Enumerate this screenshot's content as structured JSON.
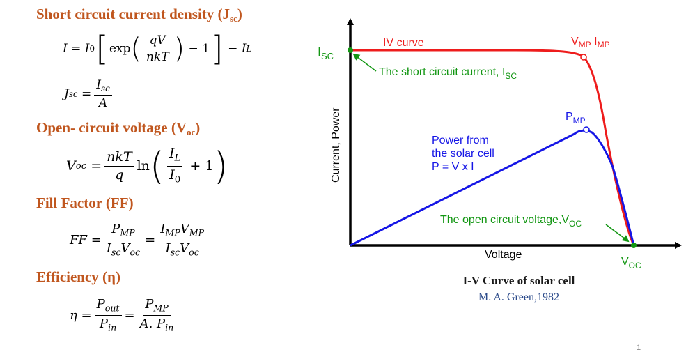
{
  "sections": [
    {
      "heading_main": "Short circuit current density (J",
      "heading_sub": "sc",
      "heading_end": ")"
    },
    {
      "heading_main": "Open- circuit voltage (V",
      "heading_sub": "oc",
      "heading_end": ")"
    },
    {
      "heading_main": "Fill Factor (FF)",
      "heading_sub": "",
      "heading_end": ""
    },
    {
      "heading_main": "Efficiency (η)",
      "heading_sub": "",
      "heading_end": ""
    }
  ],
  "equations": {
    "current": "I = I0 [exp(qV/nkT) − 1] − IL",
    "jsc": "Jsc = Isc / A",
    "voc": "Voc = (nkT/q) ln(IL/I0 + 1)",
    "ff": "FF = PMP/(Isc Voc) = IMP VMP/(Isc Voc)",
    "eta": "η = Pout/Pin = PMP/(A.Pin)"
  },
  "chart_data": {
    "type": "line",
    "xlabel": "Voltage",
    "ylabel": "Current, Power",
    "series": [
      {
        "name": "IV curve"
      },
      {
        "name": "Power from the solar cell"
      }
    ],
    "labels": {
      "iv_curve": "IV curve",
      "isc_axis_main": "I",
      "isc_axis_sub": "SC",
      "isc_note_main": "The short circuit current, I",
      "isc_note_sub": "SC",
      "vmp_main": "V",
      "vmp_sub": "MP",
      "imp_main": "I",
      "imp_sub": "MP",
      "pmp_main": "P",
      "pmp_sub": "MP",
      "power_line1": "Power from",
      "power_line2": "the solar cell",
      "power_line3": "P = V x I",
      "voc_note_main": "The open circuit voltage,V",
      "voc_note_sub": "OC",
      "voc_axis_main": "V",
      "voc_axis_sub": "OC"
    },
    "colors": {
      "iv": "#ee1c1c",
      "power": "#1515e6",
      "annotation": "#129612",
      "axis": "#000000"
    },
    "grid": false
  },
  "caption": {
    "title": "I-V Curve of solar cell",
    "author": "M. A. Green,1982"
  },
  "page_number": "1"
}
